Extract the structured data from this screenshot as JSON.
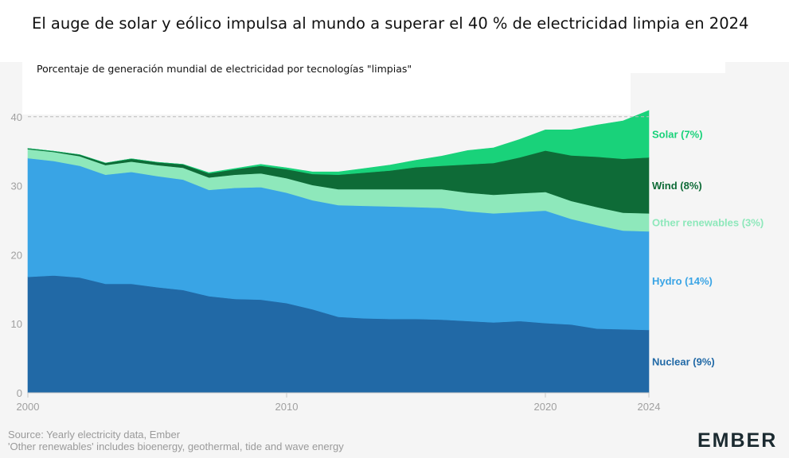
{
  "title": "El auge de solar y eólico impulsa al mundo a superar el 40 % de electricidad limpia en 2024",
  "subtitle": "Porcentaje de generación mundial de electricidad por tecnologías \"limpias\"",
  "source_lines": [
    "Source: Yearly electricity data, Ember",
    "'Other renewables' includes bioenergy, geothermal, tide and wave energy"
  ],
  "logo": "EMBER",
  "chart_data": {
    "type": "area",
    "stacked": true,
    "x": [
      2000,
      2001,
      2002,
      2003,
      2004,
      2005,
      2006,
      2007,
      2008,
      2009,
      2010,
      2011,
      2012,
      2013,
      2014,
      2015,
      2016,
      2017,
      2018,
      2019,
      2020,
      2021,
      2022,
      2023,
      2024
    ],
    "x_ticks": [
      2000,
      2010,
      2020,
      2024
    ],
    "y_ticks": [
      0,
      10,
      20,
      30,
      40
    ],
    "ylim": [
      0,
      42
    ],
    "reference_line": 40,
    "series": [
      {
        "name": "Nuclear (9%)",
        "color": "#2169a6",
        "values": [
          16.8,
          17.0,
          16.7,
          15.8,
          15.8,
          15.3,
          14.9,
          14.0,
          13.6,
          13.5,
          13.0,
          12.1,
          11.0,
          10.8,
          10.7,
          10.7,
          10.6,
          10.4,
          10.2,
          10.4,
          10.1,
          9.9,
          9.3,
          9.2,
          9.1
        ]
      },
      {
        "name": "Hydro (14%)",
        "color": "#39a4e5",
        "values": [
          17.2,
          16.6,
          16.2,
          15.8,
          16.2,
          16.1,
          16.0,
          15.4,
          16.1,
          16.3,
          16.0,
          15.8,
          16.2,
          16.3,
          16.3,
          16.2,
          16.2,
          15.9,
          15.8,
          15.8,
          16.3,
          15.3,
          15.0,
          14.3,
          14.3
        ]
      },
      {
        "name": "Other renewables (3%)",
        "color": "#8ee8bb",
        "values": [
          1.3,
          1.3,
          1.4,
          1.4,
          1.5,
          1.6,
          1.7,
          1.8,
          1.9,
          2.0,
          2.1,
          2.2,
          2.3,
          2.4,
          2.5,
          2.6,
          2.7,
          2.7,
          2.7,
          2.7,
          2.7,
          2.6,
          2.6,
          2.6,
          2.6
        ]
      },
      {
        "name": "Wind (8%)",
        "color": "#0e6b37",
        "values": [
          0.1,
          0.1,
          0.2,
          0.3,
          0.4,
          0.4,
          0.5,
          0.6,
          0.8,
          1.1,
          1.3,
          1.6,
          2.1,
          2.4,
          2.7,
          3.2,
          3.4,
          4.1,
          4.6,
          5.2,
          6.0,
          6.6,
          7.3,
          7.8,
          8.1
        ]
      },
      {
        "name": "Solar (7%)",
        "color": "#19d27a",
        "values": [
          0.0,
          0.0,
          0.0,
          0.0,
          0.0,
          0.0,
          0.0,
          0.1,
          0.1,
          0.2,
          0.2,
          0.3,
          0.4,
          0.6,
          0.8,
          1.0,
          1.4,
          2.0,
          2.2,
          2.6,
          3.0,
          3.7,
          4.6,
          5.5,
          6.8
        ]
      }
    ]
  }
}
